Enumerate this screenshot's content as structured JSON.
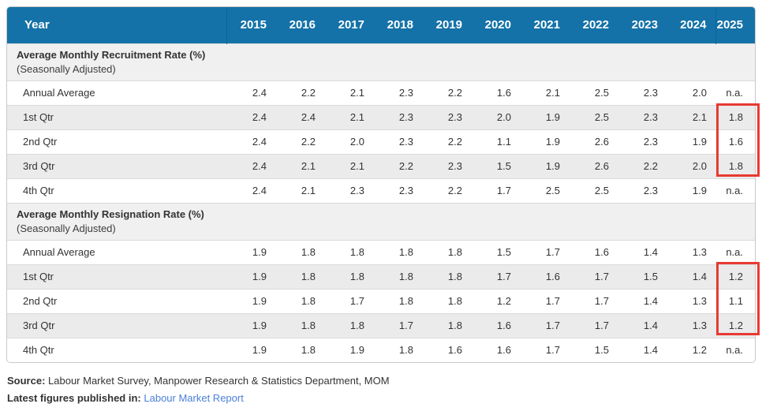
{
  "table": {
    "header": {
      "label": "Year",
      "years": [
        "2015",
        "2016",
        "2017",
        "2018",
        "2019",
        "2020",
        "2021",
        "2022",
        "2023",
        "2024",
        "2025"
      ]
    },
    "sections": [
      {
        "title": "Average Monthly Recruitment Rate (%)",
        "subtitle": "(Seasonally Adjusted)",
        "rows": [
          {
            "label": "Annual Average",
            "values": [
              "2.4",
              "2.2",
              "2.1",
              "2.3",
              "2.2",
              "1.6",
              "2.1",
              "2.5",
              "2.3",
              "2.0",
              "n.a."
            ]
          },
          {
            "label": "1st Qtr",
            "values": [
              "2.4",
              "2.4",
              "2.1",
              "2.3",
              "2.3",
              "2.0",
              "1.9",
              "2.5",
              "2.3",
              "2.1",
              "1.8"
            ]
          },
          {
            "label": "2nd Qtr",
            "values": [
              "2.4",
              "2.2",
              "2.0",
              "2.3",
              "2.2",
              "1.1",
              "1.9",
              "2.6",
              "2.3",
              "1.9",
              "1.6"
            ]
          },
          {
            "label": "3rd Qtr",
            "values": [
              "2.4",
              "2.1",
              "2.1",
              "2.2",
              "2.3",
              "1.5",
              "1.9",
              "2.6",
              "2.2",
              "2.0",
              "1.8"
            ]
          },
          {
            "label": "4th Qtr",
            "values": [
              "2.4",
              "2.1",
              "2.3",
              "2.3",
              "2.2",
              "1.7",
              "2.5",
              "2.5",
              "2.3",
              "1.9",
              "n.a."
            ]
          }
        ]
      },
      {
        "title": "Average Monthly Resignation Rate (%)",
        "subtitle": "(Seasonally Adjusted)",
        "rows": [
          {
            "label": "Annual Average",
            "values": [
              "1.9",
              "1.8",
              "1.8",
              "1.8",
              "1.8",
              "1.5",
              "1.7",
              "1.6",
              "1.4",
              "1.3",
              "n.a."
            ]
          },
          {
            "label": "1st Qtr",
            "values": [
              "1.9",
              "1.8",
              "1.8",
              "1.8",
              "1.8",
              "1.7",
              "1.6",
              "1.7",
              "1.5",
              "1.4",
              "1.2"
            ]
          },
          {
            "label": "2nd Qtr",
            "values": [
              "1.9",
              "1.8",
              "1.7",
              "1.8",
              "1.8",
              "1.2",
              "1.7",
              "1.7",
              "1.4",
              "1.3",
              "1.1"
            ]
          },
          {
            "label": "3rd Qtr",
            "values": [
              "1.9",
              "1.8",
              "1.8",
              "1.7",
              "1.8",
              "1.6",
              "1.7",
              "1.7",
              "1.4",
              "1.3",
              "1.2"
            ]
          },
          {
            "label": "4th Qtr",
            "values": [
              "1.9",
              "1.8",
              "1.9",
              "1.8",
              "1.6",
              "1.6",
              "1.7",
              "1.5",
              "1.4",
              "1.2",
              "n.a."
            ]
          }
        ]
      }
    ],
    "highlight": {
      "year": "2025",
      "rows": [
        "1st Qtr",
        "2nd Qtr",
        "3rd Qtr"
      ]
    }
  },
  "footer": {
    "source_label": "Source:",
    "source_text": "Labour Market Survey, Manpower Research & Statistics Department, MOM",
    "published_label": "Latest figures published in:",
    "published_link": "Labour Market Report"
  },
  "colors": {
    "header_bg": "#1472a8",
    "stripe_bg": "#ebebeb",
    "section_bg": "#f0f0f0",
    "highlight_border": "#e83a33",
    "link": "#4a80d9"
  }
}
